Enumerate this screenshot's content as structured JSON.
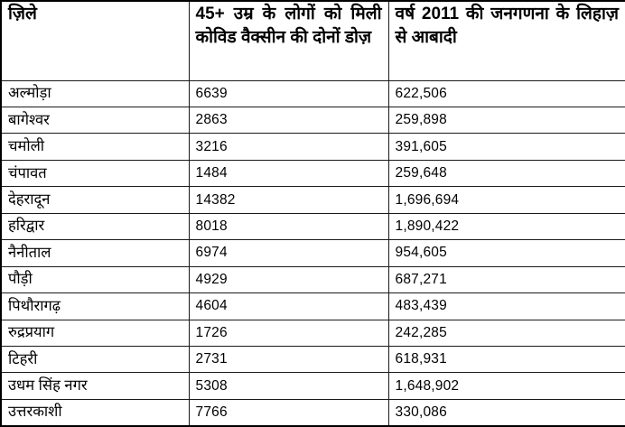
{
  "table": {
    "columns": [
      "ज़िले",
      "45+ उम्र के लोगों को मिली कोविड वैक्सीन की दोनों डोज़",
      "वर्ष 2011 की जनगणना के लिहाज़ से आबादी"
    ],
    "rows": [
      {
        "district": "अल्मोड़ा",
        "vaccinated_45plus_both_doses": "6639",
        "population_2011": "622,506"
      },
      {
        "district": "बागेश्वर",
        "vaccinated_45plus_both_doses": "2863",
        "population_2011": "259,898"
      },
      {
        "district": "चमोली",
        "vaccinated_45plus_both_doses": "3216",
        "population_2011": "391,605"
      },
      {
        "district": "चंपावत",
        "vaccinated_45plus_both_doses": "1484",
        "population_2011": "259,648"
      },
      {
        "district": "देहरादून",
        "vaccinated_45plus_both_doses": "14382",
        "population_2011": "1,696,694"
      },
      {
        "district": "हरिद्वार",
        "vaccinated_45plus_both_doses": "8018",
        "population_2011": "1,890,422"
      },
      {
        "district": "नैनीताल",
        "vaccinated_45plus_both_doses": "6974",
        "population_2011": "954,605"
      },
      {
        "district": "पौड़ी",
        "vaccinated_45plus_both_doses": "4929",
        "population_2011": "687,271"
      },
      {
        "district": "पिथौरागढ़",
        "vaccinated_45plus_both_doses": "4604",
        "population_2011": "483,439"
      },
      {
        "district": "रुद्रप्रयाग",
        "vaccinated_45plus_both_doses": "1726",
        "population_2011": "242,285"
      },
      {
        "district": "टिहरी",
        "vaccinated_45plus_both_doses": "2731",
        "population_2011": "618,931"
      },
      {
        "district": "उधम सिंह नगर",
        "vaccinated_45plus_both_doses": "5308",
        "population_2011": "1,648,902"
      },
      {
        "district": "उत्तरकाशी",
        "vaccinated_45plus_both_doses": "7766",
        "population_2011": "330,086"
      }
    ]
  }
}
